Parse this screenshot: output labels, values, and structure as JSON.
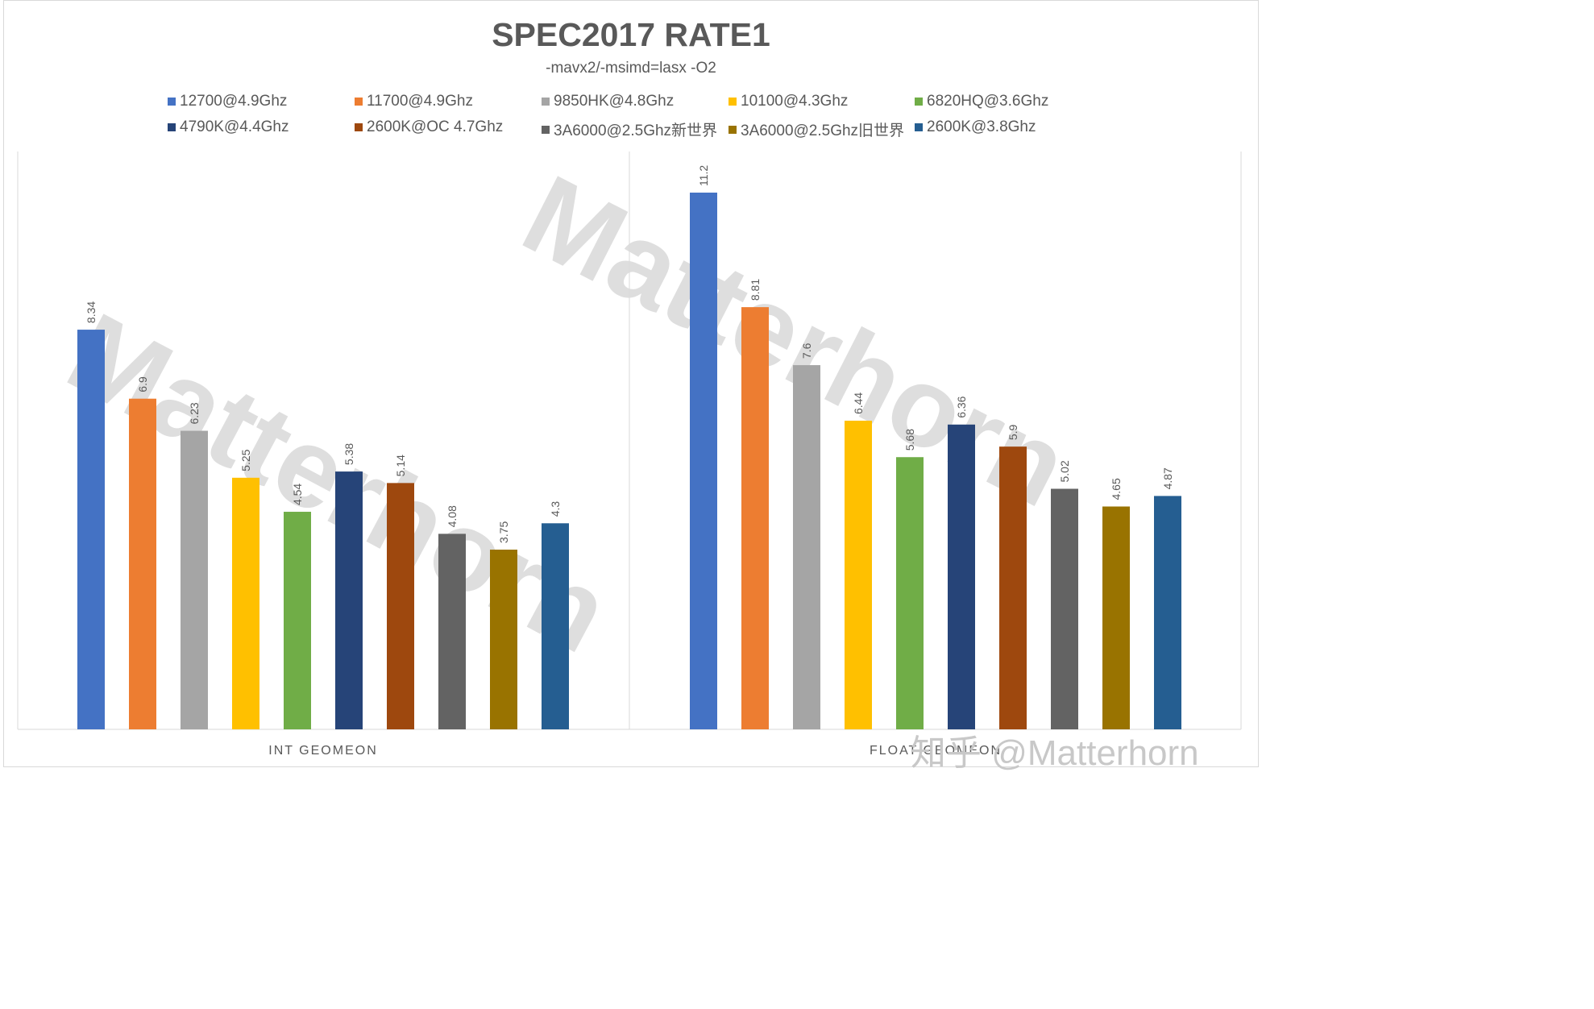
{
  "chart_data": {
    "type": "bar",
    "title": "SPEC2017 RATE1",
    "subtitle": "-mavx2/-msimd=lasx -O2",
    "categories": [
      "INT GEOMEON",
      "FLOAT GEOMEON"
    ],
    "ylim": [
      0,
      12
    ],
    "grid": false,
    "legend_position": "top",
    "series": [
      {
        "name": "12700@4.9Ghz",
        "color": "#4472C4",
        "values": [
          8.34,
          11.2
        ]
      },
      {
        "name": "11700@4.9Ghz",
        "color": "#ED7D31",
        "values": [
          6.9,
          8.81
        ]
      },
      {
        "name": "9850HK@4.8Ghz",
        "color": "#A5A5A5",
        "values": [
          6.23,
          7.6
        ]
      },
      {
        "name": "10100@4.3Ghz",
        "color": "#FFC000",
        "values": [
          5.25,
          6.44
        ]
      },
      {
        "name": "6820HQ@3.6Ghz",
        "color": "#70AD47",
        "values": [
          4.54,
          5.68
        ]
      },
      {
        "name": "4790K@4.4Ghz",
        "color": "#264478",
        "values": [
          5.38,
          6.36
        ]
      },
      {
        "name": "2600K@OC 4.7Ghz",
        "color": "#9E480E",
        "values": [
          5.14,
          5.9
        ]
      },
      {
        "name": "3A6000@2.5Ghz新世界",
        "color": "#636363",
        "values": [
          4.08,
          5.02
        ]
      },
      {
        "name": "3A6000@2.5Ghz旧世界",
        "color": "#997300",
        "values": [
          3.75,
          4.65
        ]
      },
      {
        "name": "2600K@3.8Ghz",
        "color": "#255E91",
        "values": [
          4.3,
          4.87
        ]
      }
    ],
    "data_labels": [
      [
        "8.34",
        "6.9",
        "6.23",
        "5.25",
        "4.54",
        "5.38",
        "5.14",
        "4.08",
        "3.75",
        "4.3"
      ],
      [
        "11.2",
        "8.81",
        "7.6",
        "6.44",
        "5.68",
        "6.36",
        "5.9",
        "5.02",
        "4.65",
        "4.87"
      ]
    ]
  },
  "watermark": {
    "diagonal_text": "Matterhorn",
    "bottom_text": "知乎 @Matterhorn"
  }
}
